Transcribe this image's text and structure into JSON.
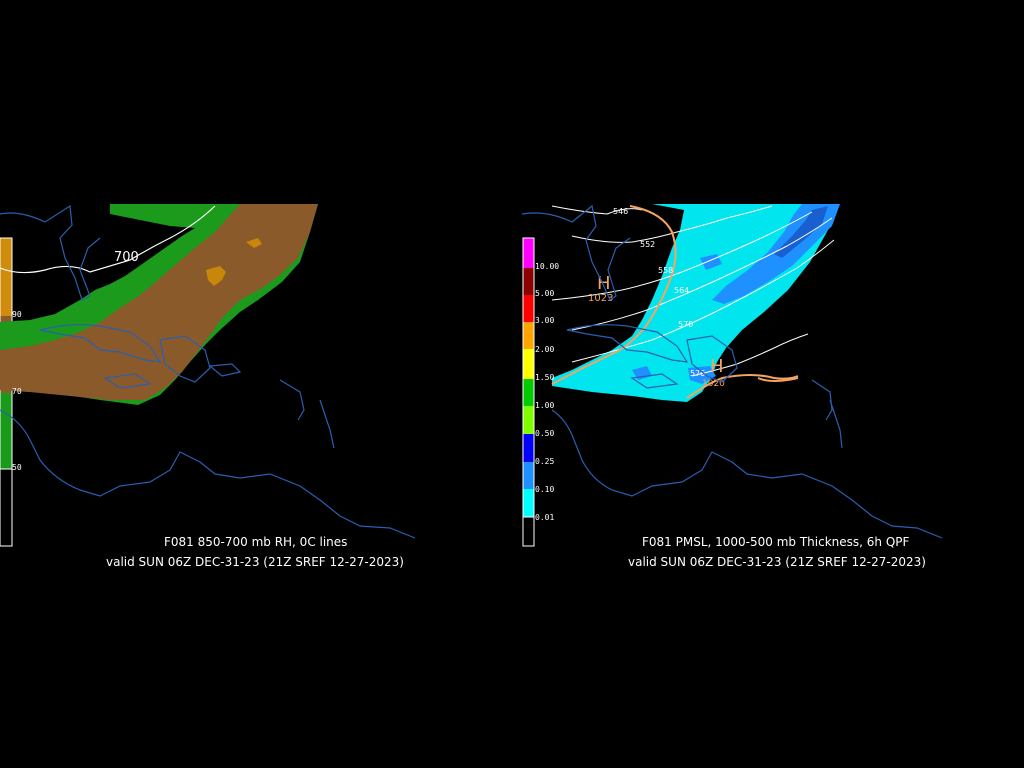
{
  "left_panel": {
    "title": "F081 850-700 mb RH, 0C lines",
    "valid": "valid SUN 06Z DEC-31-23 (21Z SREF 12-27-2023)",
    "contour_label": "700",
    "colorbar": {
      "labels": [
        "90",
        "70",
        "50"
      ],
      "colors": [
        "#d08c0c",
        "#8b5a2b",
        "#1a9a1a",
        "#000000"
      ]
    },
    "colors": {
      "rh90": "#c8860a",
      "rh70": "#8b5a2b",
      "rh50": "#1b9a1b"
    }
  },
  "right_panel": {
    "title": "F081 PMSL, 1000-500 mb Thickness, 6h QPF",
    "valid": "valid SUN 06Z DEC-31-23 (21Z SREF 12-27-2023)",
    "thickness_labels": [
      "546",
      "552",
      "558",
      "564",
      "570",
      "576"
    ],
    "high_symbol": "H",
    "pressure_labels": [
      "1023",
      "1020"
    ],
    "colorbar": {
      "labels": [
        "10.00",
        "5.00",
        "3.00",
        "2.00",
        "1.50",
        "1.00",
        "0.50",
        "0.25",
        "0.10",
        "0.01"
      ],
      "colors": [
        "#ff00ff",
        "#8b0000",
        "#ff0000",
        "#ffa500",
        "#ffff00",
        "#00cc00",
        "#7fff00",
        "#0000ff",
        "#1e90ff",
        "#00ffff"
      ]
    },
    "colors": {
      "qpf_light": "#00e5ee",
      "qpf_mid": "#1e90ff",
      "qpf_heavy": "#1a5fd0",
      "isobar": "#f4a460"
    }
  }
}
